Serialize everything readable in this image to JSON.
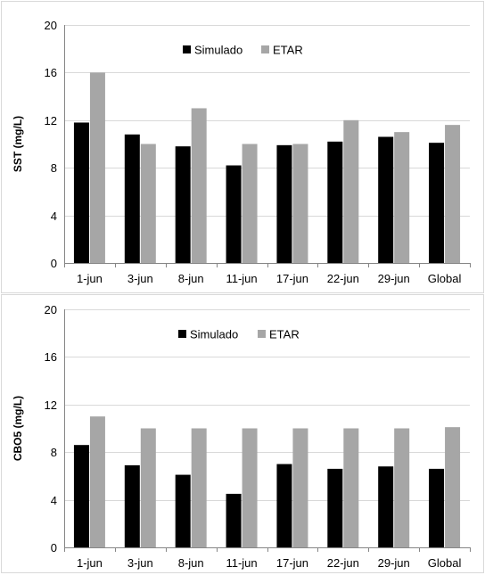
{
  "chart_data": [
    {
      "type": "bar",
      "title": "",
      "xlabel": "",
      "ylabel": "SST (mg/L)",
      "ylim": [
        0,
        20
      ],
      "yticks": [
        0,
        4,
        8,
        12,
        16,
        20
      ],
      "grid": "horizontal",
      "legend_position": "top-center",
      "categories": [
        "1-jun",
        "3-jun",
        "8-jun",
        "11-jun",
        "17-jun",
        "22-jun",
        "29-jun",
        "Global"
      ],
      "series": [
        {
          "name": "Simulado",
          "color": "#000000",
          "values": [
            11.8,
            10.8,
            9.8,
            8.2,
            9.9,
            10.2,
            10.6,
            10.1
          ]
        },
        {
          "name": "ETAR",
          "color": "#a6a6a6",
          "values": [
            16.0,
            10.0,
            13.0,
            10.0,
            10.0,
            12.0,
            11.0,
            11.6
          ]
        }
      ]
    },
    {
      "type": "bar",
      "title": "",
      "xlabel": "",
      "ylabel": "CBO5 (mg/L)",
      "ylim": [
        0,
        20
      ],
      "yticks": [
        0,
        4,
        8,
        12,
        16,
        20
      ],
      "grid": "horizontal",
      "legend_position": "top-center",
      "categories": [
        "1-jun",
        "3-jun",
        "8-jun",
        "11-jun",
        "17-jun",
        "22-jun",
        "29-jun",
        "Global"
      ],
      "series": [
        {
          "name": "Simulado",
          "color": "#000000",
          "values": [
            8.6,
            6.9,
            6.1,
            4.5,
            7.0,
            6.6,
            6.8,
            6.6
          ]
        },
        {
          "name": "ETAR",
          "color": "#a6a6a6",
          "values": [
            11.0,
            10.0,
            10.0,
            10.0,
            10.0,
            10.0,
            10.0,
            10.1
          ]
        }
      ]
    }
  ]
}
